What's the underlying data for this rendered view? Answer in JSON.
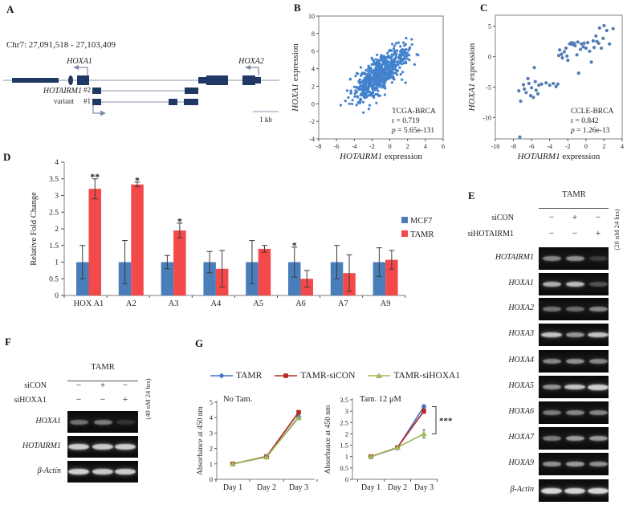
{
  "panel_a": {
    "label": "A",
    "locus": "Chr7: 27,091,518 - 27,103,409",
    "gene_left": "HOXA1",
    "gene_right": "HOXA2",
    "isoform": "HOTAIRM1",
    "isoform_sub": "variant",
    "variant_2": "#2",
    "variant_1": "#1",
    "scale": "1 kb",
    "exon_color": "#1f3864"
  },
  "panel_b": {
    "label": "B"
  },
  "panel_c": {
    "label": "C"
  },
  "panel_d": {
    "label": "D"
  },
  "panel_e": {
    "label": "E",
    "header": "TAMR",
    "conditions": [
      {
        "name": "siCON",
        "lanes": [
          "−",
          "+",
          "−"
        ]
      },
      {
        "name": "siHOTAIRM1",
        "lanes": [
          "−",
          "−",
          "+"
        ]
      }
    ],
    "note": "(20 nM 24 hrs)",
    "rows": [
      {
        "gene": "HOTAIRM1",
        "bands": [
          0.55,
          0.6,
          0.18
        ]
      },
      {
        "gene": "HOXA1",
        "bands": [
          0.75,
          0.8,
          0.3
        ]
      },
      {
        "gene": "HOXA2",
        "bands": [
          0.45,
          0.42,
          0.55
        ]
      },
      {
        "gene": "HOXA3",
        "bands": [
          0.85,
          0.62,
          0.85
        ]
      },
      {
        "gene": "HOXA4",
        "bands": [
          0.55,
          0.6,
          0.55
        ]
      },
      {
        "gene": "HOXA5",
        "bands": [
          0.6,
          0.85,
          0.9
        ]
      },
      {
        "gene": "HOXA6",
        "bands": [
          0.5,
          0.55,
          0.55
        ]
      },
      {
        "gene": "HOXA7",
        "bands": [
          0.5,
          0.65,
          0.65
        ]
      },
      {
        "gene": "HOXA9",
        "bands": [
          0.6,
          0.65,
          0.6
        ]
      },
      {
        "gene": "β-Actin",
        "bands": [
          0.95,
          0.93,
          0.95
        ]
      }
    ]
  },
  "panel_f": {
    "label": "F",
    "header": "TAMR",
    "conditions": [
      {
        "name": "siCON",
        "lanes": [
          "−",
          "+",
          "−"
        ]
      },
      {
        "name": "siHOXA1",
        "lanes": [
          "−",
          "−",
          "+"
        ]
      }
    ],
    "note": "(40 nM 24 hrs)",
    "rows": [
      {
        "gene": "HOXA1",
        "bands": [
          0.45,
          0.5,
          0.15
        ]
      },
      {
        "gene": "HOTAIRM1",
        "bands": [
          0.9,
          0.88,
          0.9
        ]
      },
      {
        "gene": "β-Actin",
        "bands": [
          0.92,
          0.88,
          0.9
        ]
      }
    ]
  },
  "panel_g": {
    "label": "G"
  },
  "chart_data": [
    {
      "id": "B",
      "type": "scatter",
      "dataset": "TCGA-BRCA",
      "annotation": [
        "TCGA-BRCA",
        "r = 0.719",
        "p = 5.65e-131"
      ],
      "xlabel_gene": "HOTAIRM1",
      "xlabel_rest": " expression",
      "ylabel_gene": "HOXA1",
      "ylabel_rest": " expression",
      "xlim": [
        -8,
        6
      ],
      "xticks": [
        -8,
        -6,
        -4,
        -2,
        0,
        2,
        4,
        6
      ],
      "ylim": [
        -4,
        10
      ],
      "yticks": [
        -4,
        -2,
        0,
        2,
        4,
        6,
        8,
        10
      ],
      "dot_color": "#2e74c8",
      "points_generator": {
        "n": 660,
        "seed": 42,
        "mean": [
          -1.15,
          3.4
        ],
        "sd": [
          1.5,
          1.45
        ],
        "r": 0.72,
        "clip_x": [
          -5.6,
          4.25
        ],
        "clip_y": [
          -1.9,
          7.9
        ]
      }
    },
    {
      "id": "C",
      "type": "scatter",
      "dataset": "CCLE-BRCA",
      "annotation": [
        "CCLE-BRCA",
        "r = 0.842",
        "p = 1.26e-13"
      ],
      "xlabel_gene": "HOTAIRM1",
      "xlabel_rest": " expression",
      "ylabel_gene": "HOXA1",
      "ylabel_rest": " expression",
      "xlim": [
        -10,
        4
      ],
      "xticks": [
        -10,
        -8,
        -6,
        -4,
        -2,
        0,
        2,
        4
      ],
      "ylim": [
        -13.5,
        6.8
      ],
      "yticks": [
        -10,
        -5,
        0,
        5
      ],
      "dot_color": "#3f6eae",
      "points": [
        [
          -7.4,
          -5.6
        ],
        [
          -7.2,
          -7.3
        ],
        [
          -6.9,
          -4.6
        ],
        [
          -6.8,
          -5.3
        ],
        [
          -6.6,
          -5.9
        ],
        [
          -6.4,
          -3.6
        ],
        [
          -6.3,
          -4.4
        ],
        [
          -6.1,
          -6.4
        ],
        [
          -6.0,
          -5.1
        ],
        [
          -5.8,
          -6.7
        ],
        [
          -5.7,
          -1.8
        ],
        [
          -5.6,
          -4.1
        ],
        [
          -5.5,
          -5.5
        ],
        [
          -5.3,
          -6.1
        ],
        [
          -5.2,
          -4.7
        ],
        [
          -4.9,
          -4.5
        ],
        [
          -4.4,
          -4.3
        ],
        [
          -4.0,
          -4.7
        ],
        [
          -3.6,
          -4.4
        ],
        [
          -3.3,
          -4.9
        ],
        [
          -3.1,
          -4.5
        ],
        [
          -7.3,
          -13.2
        ],
        [
          -3.0,
          0.2
        ],
        [
          -2.9,
          1.1
        ],
        [
          -2.7,
          0.4
        ],
        [
          -2.6,
          -0.2
        ],
        [
          -2.4,
          0.8
        ],
        [
          -2.2,
          1.4
        ],
        [
          -2.1,
          0.1
        ],
        [
          -2.0,
          -0.6
        ],
        [
          -1.8,
          2.1
        ],
        [
          -1.6,
          2.3
        ],
        [
          -1.5,
          2.0
        ],
        [
          -1.3,
          2.2
        ],
        [
          -1.2,
          1.8
        ],
        [
          -1.0,
          0.3
        ],
        [
          -0.9,
          2.4
        ],
        [
          -0.8,
          -2.7
        ],
        [
          -0.6,
          1.2
        ],
        [
          -0.5,
          2.1
        ],
        [
          -0.3,
          1.6
        ],
        [
          -0.2,
          2.2
        ],
        [
          0.0,
          1.4
        ],
        [
          0.2,
          2.3
        ],
        [
          0.4,
          0.9
        ],
        [
          0.6,
          -0.9
        ],
        [
          0.8,
          2.6
        ],
        [
          0.9,
          1.5
        ],
        [
          1.1,
          3.4
        ],
        [
          1.2,
          2.5
        ],
        [
          1.4,
          2.2
        ],
        [
          1.5,
          4.7
        ],
        [
          1.7,
          1.4
        ],
        [
          1.9,
          3.0
        ],
        [
          2.0,
          5.1
        ],
        [
          2.3,
          4.3
        ],
        [
          2.6,
          2.1
        ],
        [
          3.0,
          4.6
        ]
      ]
    },
    {
      "id": "D",
      "type": "bar",
      "ylabel": "Relative Fold Change",
      "ylim": [
        0,
        4
      ],
      "yticks": [
        0,
        0.5,
        1,
        1.5,
        2,
        2.5,
        3,
        3.5,
        4
      ],
      "categories": [
        "HOX A1",
        "A2",
        "A3",
        "A4",
        "A5",
        "A6",
        "A7",
        "A9"
      ],
      "series": [
        {
          "name": "MCF7",
          "color": "#4a7ebb",
          "values": [
            1,
            1,
            1,
            1,
            1,
            1,
            1,
            1
          ],
          "errors": [
            0.5,
            0.65,
            0.2,
            0.32,
            0.65,
            0.45,
            0.5,
            0.43
          ]
        },
        {
          "name": "TAMR",
          "color": "#f4494b",
          "values": [
            3.2,
            3.33,
            1.95,
            0.8,
            1.4,
            0.5,
            0.67,
            1.07
          ],
          "errors": [
            0.3,
            0.07,
            0.22,
            0.55,
            0.1,
            0.25,
            0.55,
            0.28
          ]
        }
      ],
      "significance": [
        {
          "category_index": 0,
          "series_index": 1,
          "label": "**",
          "y": 3.66
        },
        {
          "category_index": 1,
          "series_index": 1,
          "label": "*",
          "y": 3.55
        },
        {
          "category_index": 2,
          "series_index": 1,
          "label": "*",
          "y": 2.32
        },
        {
          "category_index": 5,
          "series_index": 0,
          "label": "*",
          "y": 1.6
        }
      ]
    },
    {
      "id": "G1",
      "type": "line",
      "title": "No Tam.",
      "ylabel": "Absorbance at 450 nm",
      "x": [
        "Day 1",
        "Day 2",
        "Day 3"
      ],
      "ylim": [
        0,
        5
      ],
      "yticks": [
        0,
        1,
        2,
        3,
        4,
        5
      ],
      "series": [
        {
          "name": "TAMR",
          "color": "#4473c6",
          "marker": "diamond",
          "values": [
            1.0,
            1.45,
            4.05
          ],
          "errors": [
            0.05,
            0.08,
            0.12
          ]
        },
        {
          "name": "TAMR-siCON",
          "color": "#b42b20",
          "marker": "square",
          "values": [
            1.0,
            1.48,
            4.35
          ],
          "errors": [
            0.05,
            0.08,
            0.1
          ]
        },
        {
          "name": "TAMR-siHOXA1",
          "color": "#9cba57",
          "marker": "triangle",
          "values": [
            1.0,
            1.45,
            4.0
          ],
          "errors": [
            0.05,
            0.08,
            0.12
          ]
        }
      ]
    },
    {
      "id": "G2",
      "type": "line",
      "title": "Tam. 12 μM",
      "ylabel": "Absorbance at 450 nm",
      "x": [
        "Day 1",
        "Day 2",
        "Day 3"
      ],
      "ylim": [
        0,
        3.5
      ],
      "yticks": [
        0,
        0.5,
        1,
        1.5,
        2,
        2.5,
        3,
        3.5
      ],
      "series": [
        {
          "name": "TAMR",
          "color": "#4473c6",
          "marker": "diamond",
          "values": [
            1.0,
            1.38,
            3.2
          ],
          "errors": [
            0.04,
            0.05,
            0.08
          ]
        },
        {
          "name": "TAMR-siCON",
          "color": "#b42b20",
          "marker": "square",
          "values": [
            1.0,
            1.4,
            3.0
          ],
          "errors": [
            0.04,
            0.05,
            0.1
          ]
        },
        {
          "name": "TAMR-siHOXA1",
          "color": "#9cba57",
          "marker": "triangle",
          "values": [
            1.0,
            1.4,
            2.0
          ],
          "errors": [
            0.04,
            0.05,
            0.18
          ]
        }
      ],
      "significance": {
        "label": "***",
        "from_value": 3.2,
        "to_value": 2.0,
        "at_x_index": 2
      }
    }
  ]
}
